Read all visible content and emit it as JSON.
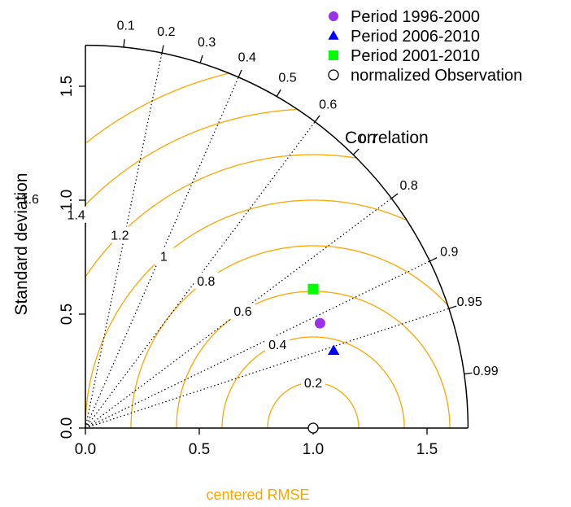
{
  "chart_data": {
    "type": "taylor-diagram",
    "title": "",
    "ylabel": "Standard deviation",
    "xlabel": "centered RMSE",
    "correlation_label": "Correlation",
    "sd_max": 1.68,
    "axis_ticks": [
      0.0,
      0.5,
      1.0,
      1.5
    ],
    "axis_tick_labels": [
      "0.0",
      "0.5",
      "1.0",
      "1.5"
    ],
    "correlation_ticks": [
      0.1,
      0.2,
      0.3,
      0.4,
      0.5,
      0.6,
      0.7,
      0.8,
      0.9,
      0.95,
      0.99
    ],
    "correlation_tick_labels": [
      "0.1",
      "0.2",
      "0.3",
      "0.4",
      "0.5",
      "0.6",
      "0.7",
      "0.8",
      "0.9",
      "0.95",
      "0.99"
    ],
    "correlation_lines": [
      0.2,
      0.4,
      0.6,
      0.8,
      0.9,
      0.95
    ],
    "rmse_levels": [
      0.2,
      0.4,
      0.6,
      0.8,
      1.0,
      1.2,
      1.4,
      1.6
    ],
    "rmse_labels": [
      "0.2",
      "0.4",
      "0.6",
      "0.8",
      "1",
      "1.2",
      "1.4",
      "1.6"
    ],
    "observation": {
      "name": "normalized Observation",
      "x": 1.0,
      "y": 0.0
    },
    "series": [
      {
        "name": "Period 1996-2000",
        "marker": "circle",
        "color": "#9b30e6",
        "x": 1.03,
        "y": 0.46
      },
      {
        "name": "Period 2006-2010",
        "marker": "triangle",
        "color": "#0000ff",
        "x": 1.09,
        "y": 0.34
      },
      {
        "name": "Period 2001-2010",
        "marker": "square",
        "color": "#00ff00",
        "x": 1.0,
        "y": 0.61
      }
    ],
    "legend_position": "top-right",
    "colors": {
      "rmse": "#ffa500",
      "frame": "#000000",
      "correlation_lines": "#000000"
    }
  }
}
